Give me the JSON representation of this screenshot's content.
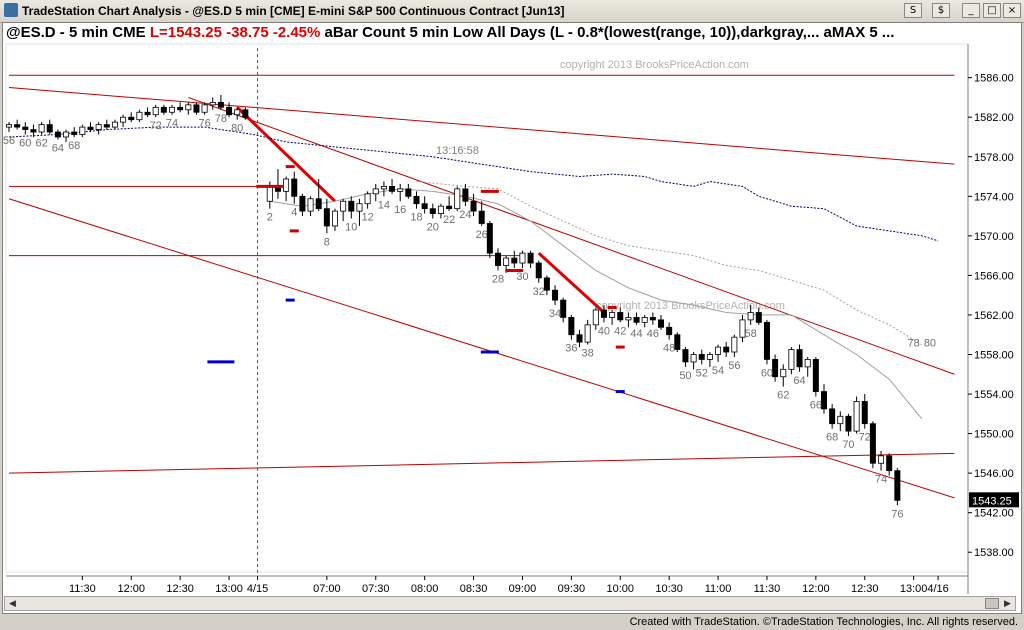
{
  "window": {
    "title": "TradeStation Chart Analysis - @ES.D 5 min [CME] E-mini S&P 500 Continuous Contract [Jun13]",
    "buttons": [
      "S",
      "$",
      "_",
      "□",
      "×"
    ]
  },
  "header": {
    "symbol": "@ES.D - 5 min  CME",
    "last": "L=1543.25  -38.75  -2.45%",
    "indicator": "aBar Count 5 min Low All Days (L - 0.8*(lowest(range, 10)),darkgray,...  aMAX 5 ..."
  },
  "footer": "Created with TradeStation. ©TradeStation Technologies, Inc. All rights reserved.",
  "colors": {
    "bg": "#ffffff",
    "trendline": "#c00000",
    "thick_trendline": "#e00000",
    "blue_ma": "#00007a",
    "gray_ma": "#a0a0a0",
    "marker_blue": "#0000cc",
    "marker_red": "#d00000",
    "text_label": "#707070",
    "last_price_bg": "#000000"
  },
  "chart_data": {
    "type": "candlestick",
    "symbol": "@ES.D",
    "interval": "5 min",
    "watermark": "copyright 2013 BrooksPriceAction.com",
    "annotation": "13:16:58",
    "last_price": "1543.25",
    "y_ticks": [
      "1586.00",
      "1582.00",
      "1578.00",
      "1574.00",
      "1570.00",
      "1566.00",
      "1562.00",
      "1558.00",
      "1554.00",
      "1550.00",
      "1546.00",
      "1542.00",
      "1538.00"
    ],
    "y_tick_values": [
      1586,
      1582,
      1578,
      1574,
      1570,
      1566,
      1562,
      1558,
      1554,
      1550,
      1546,
      1542,
      1538
    ],
    "ylim": [
      1536,
      1589
    ],
    "x_ticks": [
      {
        "bar": 9,
        "label": "11:30"
      },
      {
        "bar": 15,
        "label": "12:00"
      },
      {
        "bar": 21,
        "label": "12:30"
      },
      {
        "bar": 27,
        "label": "13:00"
      },
      {
        "bar": 30.5,
        "label": "4/15"
      },
      {
        "bar": 38,
        "label": "07:00"
      },
      {
        "bar": 44,
        "label": "07:30"
      },
      {
        "bar": 50,
        "label": "08:00"
      },
      {
        "bar": 56,
        "label": "08:30"
      },
      {
        "bar": 62,
        "label": "09:00"
      },
      {
        "bar": 68,
        "label": "09:30"
      },
      {
        "bar": 74,
        "label": "10:00"
      },
      {
        "bar": 80,
        "label": "10:30"
      },
      {
        "bar": 86,
        "label": "11:00"
      },
      {
        "bar": 92,
        "label": "11:30"
      },
      {
        "bar": 98,
        "label": "12:00"
      },
      {
        "bar": 104,
        "label": "12:30"
      },
      {
        "bar": 110,
        "label": "13:00"
      },
      {
        "bar": 113,
        "label": "4/16"
      }
    ],
    "session_break_bar": 30.5,
    "bars_prev": [
      [
        1581.0,
        1581.5,
        1580.5,
        1581.25
      ],
      [
        1581.25,
        1581.75,
        1580.75,
        1581.0
      ],
      [
        1581.0,
        1581.5,
        1580.25,
        1580.75
      ],
      [
        1580.75,
        1581.25,
        1580.0,
        1580.5
      ],
      [
        1580.5,
        1581.5,
        1580.25,
        1581.25
      ],
      [
        1581.25,
        1581.75,
        1580.25,
        1580.5
      ],
      [
        1580.5,
        1580.75,
        1579.75,
        1580.0
      ],
      [
        1580.0,
        1580.75,
        1579.5,
        1580.5
      ],
      [
        1580.5,
        1581.0,
        1580.0,
        1580.25
      ],
      [
        1580.25,
        1581.25,
        1580.0,
        1581.0
      ],
      [
        1581.0,
        1581.5,
        1580.5,
        1580.75
      ],
      [
        1580.75,
        1581.5,
        1580.25,
        1581.25
      ],
      [
        1581.25,
        1581.75,
        1580.75,
        1581.0
      ],
      [
        1581.0,
        1581.75,
        1580.75,
        1581.5
      ],
      [
        1581.5,
        1582.25,
        1581.0,
        1582.0
      ],
      [
        1582.0,
        1582.5,
        1581.5,
        1581.75
      ],
      [
        1581.75,
        1582.75,
        1581.5,
        1582.5
      ],
      [
        1582.5,
        1583.0,
        1582.0,
        1582.25
      ],
      [
        1582.25,
        1583.25,
        1582.0,
        1583.0
      ],
      [
        1583.0,
        1583.25,
        1582.25,
        1582.5
      ],
      [
        1582.5,
        1583.25,
        1582.25,
        1583.0
      ],
      [
        1583.0,
        1583.5,
        1582.5,
        1582.75
      ],
      [
        1582.75,
        1583.5,
        1582.25,
        1583.25
      ],
      [
        1583.25,
        1583.5,
        1582.25,
        1582.5
      ],
      [
        1582.5,
        1583.5,
        1582.25,
        1583.25
      ],
      [
        1583.25,
        1584.0,
        1582.75,
        1583.5
      ],
      [
        1583.5,
        1584.25,
        1582.75,
        1583.0
      ],
      [
        1583.0,
        1583.5,
        1582.0,
        1582.25
      ],
      [
        1582.25,
        1583.0,
        1581.75,
        1582.75
      ],
      [
        1582.75,
        1583.0,
        1581.75,
        1582.0
      ]
    ],
    "bars_today": [
      [
        1573.5,
        1575.5,
        1572.75,
        1575.0
      ],
      [
        1575.0,
        1576.75,
        1573.75,
        1574.5
      ],
      [
        1574.5,
        1576.0,
        1573.5,
        1575.75
      ],
      [
        1575.75,
        1576.5,
        1573.25,
        1574.0
      ],
      [
        1574.0,
        1574.25,
        1572.0,
        1572.5
      ],
      [
        1572.5,
        1574.0,
        1572.0,
        1573.75
      ],
      [
        1573.75,
        1575.75,
        1572.5,
        1572.75
      ],
      [
        1572.75,
        1573.75,
        1570.25,
        1571.0
      ],
      [
        1571.0,
        1572.75,
        1570.5,
        1572.5
      ],
      [
        1572.5,
        1573.75,
        1571.5,
        1573.5
      ],
      [
        1573.5,
        1574.0,
        1571.75,
        1572.5
      ],
      [
        1572.5,
        1573.75,
        1571.0,
        1573.25
      ],
      [
        1573.25,
        1574.5,
        1572.75,
        1574.25
      ],
      [
        1574.25,
        1575.25,
        1573.5,
        1574.75
      ],
      [
        1574.75,
        1575.5,
        1574.0,
        1575.0
      ],
      [
        1575.0,
        1575.75,
        1574.25,
        1574.5
      ],
      [
        1574.5,
        1575.25,
        1573.5,
        1574.75
      ],
      [
        1574.75,
        1575.25,
        1573.75,
        1574.0
      ],
      [
        1574.0,
        1574.5,
        1572.75,
        1573.25
      ],
      [
        1573.25,
        1574.0,
        1572.25,
        1572.75
      ],
      [
        1572.75,
        1573.25,
        1571.75,
        1572.25
      ],
      [
        1572.25,
        1573.25,
        1571.75,
        1573.0
      ],
      [
        1573.0,
        1574.0,
        1572.5,
        1572.75
      ],
      [
        1572.75,
        1575.0,
        1572.5,
        1574.75
      ],
      [
        1574.75,
        1575.25,
        1573.0,
        1573.5
      ],
      [
        1573.5,
        1574.25,
        1572.0,
        1572.5
      ],
      [
        1572.5,
        1573.5,
        1571.0,
        1571.25
      ],
      [
        1571.25,
        1571.5,
        1567.75,
        1568.25
      ],
      [
        1568.25,
        1568.75,
        1566.5,
        1567.0
      ],
      [
        1567.0,
        1568.0,
        1566.25,
        1567.75
      ],
      [
        1567.75,
        1568.5,
        1566.75,
        1567.25
      ],
      [
        1567.25,
        1568.5,
        1566.75,
        1568.25
      ],
      [
        1568.25,
        1568.5,
        1566.75,
        1567.25
      ],
      [
        1567.25,
        1567.5,
        1565.25,
        1565.75
      ],
      [
        1565.75,
        1566.0,
        1564.0,
        1564.5
      ],
      [
        1564.5,
        1565.0,
        1563.0,
        1563.5
      ],
      [
        1563.5,
        1563.75,
        1561.25,
        1561.75
      ],
      [
        1561.75,
        1562.0,
        1559.5,
        1560.0
      ],
      [
        1560.0,
        1560.5,
        1558.75,
        1559.25
      ],
      [
        1559.25,
        1561.5,
        1559.0,
        1561.0
      ],
      [
        1561.0,
        1562.75,
        1560.5,
        1562.5
      ],
      [
        1562.5,
        1563.0,
        1561.25,
        1561.75
      ],
      [
        1561.75,
        1562.5,
        1561.0,
        1562.25
      ],
      [
        1562.25,
        1562.75,
        1561.25,
        1561.5
      ],
      [
        1561.5,
        1562.25,
        1560.75,
        1561.75
      ],
      [
        1561.75,
        1562.25,
        1561.0,
        1561.25
      ],
      [
        1561.25,
        1562.0,
        1560.75,
        1561.75
      ],
      [
        1561.75,
        1562.25,
        1561.0,
        1561.5
      ],
      [
        1561.5,
        1562.0,
        1560.5,
        1560.75
      ],
      [
        1560.75,
        1561.25,
        1559.5,
        1560.0
      ],
      [
        1560.0,
        1560.25,
        1558.25,
        1558.5
      ],
      [
        1558.5,
        1558.75,
        1556.75,
        1557.25
      ],
      [
        1557.25,
        1558.25,
        1556.5,
        1558.0
      ],
      [
        1558.0,
        1558.5,
        1557.0,
        1557.5
      ],
      [
        1557.5,
        1558.25,
        1556.75,
        1558.0
      ],
      [
        1558.0,
        1559.0,
        1557.25,
        1558.75
      ],
      [
        1558.75,
        1559.25,
        1557.75,
        1558.25
      ],
      [
        1558.25,
        1560.0,
        1557.75,
        1559.75
      ],
      [
        1559.75,
        1562.0,
        1559.25,
        1561.5
      ],
      [
        1561.5,
        1563.0,
        1561.0,
        1562.25
      ],
      [
        1562.25,
        1562.75,
        1561.0,
        1561.25
      ],
      [
        1561.25,
        1561.5,
        1557.0,
        1557.5
      ],
      [
        1557.5,
        1558.0,
        1555.25,
        1555.75
      ],
      [
        1555.75,
        1557.0,
        1554.75,
        1556.5
      ],
      [
        1556.5,
        1558.75,
        1556.0,
        1558.5
      ],
      [
        1558.5,
        1559.0,
        1556.25,
        1556.75
      ],
      [
        1556.75,
        1557.75,
        1555.75,
        1557.5
      ],
      [
        1557.5,
        1557.75,
        1553.75,
        1554.25
      ],
      [
        1554.25,
        1555.0,
        1552.0,
        1552.5
      ],
      [
        1552.5,
        1553.0,
        1550.5,
        1551.0
      ],
      [
        1551.0,
        1552.25,
        1550.25,
        1551.75
      ],
      [
        1551.75,
        1552.0,
        1549.75,
        1550.25
      ],
      [
        1550.25,
        1553.75,
        1550.0,
        1553.25
      ],
      [
        1553.25,
        1554.0,
        1550.5,
        1551.0
      ],
      [
        1551.0,
        1551.25,
        1546.5,
        1547.0
      ],
      [
        1547.0,
        1548.25,
        1546.25,
        1547.75
      ],
      [
        1547.75,
        1548.0,
        1545.75,
        1546.25
      ],
      [
        1546.25,
        1546.5,
        1542.75,
        1543.25
      ]
    ],
    "bar_labels": [
      {
        "bar": 0,
        "text": "56"
      },
      {
        "bar": 2,
        "text": "60"
      },
      {
        "bar": 4,
        "text": "62"
      },
      {
        "bar": 6,
        "text": "64"
      },
      {
        "bar": 8,
        "text": "68"
      },
      {
        "bar": 18,
        "text": "72"
      },
      {
        "bar": 20,
        "text": "74"
      },
      {
        "bar": 24,
        "text": "76"
      },
      {
        "bar": 26,
        "text": "78"
      },
      {
        "bar": 28,
        "text": "80"
      },
      {
        "bar": 31,
        "text": "2"
      },
      {
        "bar": 34,
        "text": "4"
      },
      {
        "bar": 38,
        "text": "8"
      },
      {
        "bar": 41,
        "text": "10"
      },
      {
        "bar": 43,
        "text": "12"
      },
      {
        "bar": 45,
        "text": "14"
      },
      {
        "bar": 47,
        "text": "16"
      },
      {
        "bar": 49,
        "text": "18"
      },
      {
        "bar": 51,
        "text": "20"
      },
      {
        "bar": 53,
        "text": "22"
      },
      {
        "bar": 55,
        "text": "24"
      },
      {
        "bar": 57,
        "text": "26"
      },
      {
        "bar": 59,
        "text": "28"
      },
      {
        "bar": 62,
        "text": "30"
      },
      {
        "bar": 64,
        "text": "32"
      },
      {
        "bar": 66,
        "text": "34"
      },
      {
        "bar": 68,
        "text": "36"
      },
      {
        "bar": 70,
        "text": "38"
      },
      {
        "bar": 72,
        "text": "40"
      },
      {
        "bar": 74,
        "text": "42"
      },
      {
        "bar": 76,
        "text": "44"
      },
      {
        "bar": 78,
        "text": "46"
      },
      {
        "bar": 80,
        "text": "48"
      },
      {
        "bar": 82,
        "text": "50"
      },
      {
        "bar": 84,
        "text": "52"
      },
      {
        "bar": 86,
        "text": "54"
      },
      {
        "bar": 88,
        "text": "56"
      },
      {
        "bar": 90,
        "text": "58"
      },
      {
        "bar": 92,
        "text": "60"
      },
      {
        "bar": 94,
        "text": "62"
      },
      {
        "bar": 96,
        "text": "64"
      },
      {
        "bar": 98,
        "text": "66"
      },
      {
        "bar": 100,
        "text": "68"
      },
      {
        "bar": 102,
        "text": "70"
      },
      {
        "bar": 104,
        "text": "72"
      },
      {
        "bar": 106,
        "text": "74"
      },
      {
        "bar": 108,
        "text": "76"
      },
      {
        "bar": 110,
        "text": "78"
      },
      {
        "bar": 112,
        "text": "80"
      }
    ],
    "horizontal_lines": [
      {
        "price": 1586.25,
        "from_bar": 0,
        "to_bar": 116
      },
      {
        "price": 1575.0,
        "from_bar": 0,
        "to_bar": 32
      },
      {
        "price": 1568.0,
        "from_bar": 0,
        "to_bar": 63
      }
    ],
    "trendlines": [
      {
        "from": [
          0,
          1585.0
        ],
        "to": [
          116,
          1577.25
        ],
        "weight": "thin"
      },
      {
        "from": [
          22,
          1584.0
        ],
        "to": [
          116,
          1556.0
        ],
        "weight": "thin"
      },
      {
        "from": [
          0,
          1573.75
        ],
        "to": [
          116,
          1543.5
        ],
        "weight": "thin"
      },
      {
        "from": [
          0,
          1546.0
        ],
        "to": [
          116,
          1548.0
        ],
        "weight": "thin"
      },
      {
        "from": [
          28,
          1583.0
        ],
        "to": [
          40,
          1573.5
        ],
        "weight": "thick"
      },
      {
        "from": [
          65,
          1568.25
        ],
        "to": [
          73,
          1562.25
        ],
        "weight": "thick"
      }
    ],
    "markers": [
      {
        "bar": 26,
        "price": 1557.25,
        "color": "blue",
        "width": 3
      },
      {
        "bar": 32,
        "price": 1575.0,
        "color": "red",
        "width": 3
      },
      {
        "bar": 34.5,
        "price": 1577.0,
        "color": "red",
        "width": 1
      },
      {
        "bar": 34.5,
        "price": 1563.5,
        "color": "blue",
        "width": 1
      },
      {
        "bar": 35,
        "price": 1570.5,
        "color": "red",
        "width": 1
      },
      {
        "bar": 59,
        "price": 1574.5,
        "color": "red",
        "width": 2
      },
      {
        "bar": 59,
        "price": 1558.25,
        "color": "blue",
        "width": 2
      },
      {
        "bar": 62,
        "price": 1566.5,
        "color": "red",
        "width": 2
      },
      {
        "bar": 74,
        "price": 1562.75,
        "color": "red",
        "width": 1
      },
      {
        "bar": 75,
        "price": 1558.75,
        "color": "red",
        "width": 1
      },
      {
        "bar": 75,
        "price": 1554.25,
        "color": "blue",
        "width": 1
      }
    ],
    "blue_ma": [
      [
        0,
        1580.0
      ],
      [
        6,
        1580.25
      ],
      [
        12,
        1580.75
      ],
      [
        18,
        1581.0
      ],
      [
        24,
        1581.0
      ],
      [
        28,
        1580.5
      ],
      [
        30,
        1580.25
      ],
      [
        34,
        1579.5
      ],
      [
        40,
        1579.0
      ],
      [
        46,
        1578.5
      ],
      [
        52,
        1578.0
      ],
      [
        58,
        1577.25
      ],
      [
        64,
        1576.5
      ],
      [
        70,
        1576.0
      ],
      [
        74,
        1576.25
      ],
      [
        78,
        1576.0
      ],
      [
        80,
        1575.5
      ],
      [
        84,
        1575.0
      ],
      [
        86,
        1575.5
      ],
      [
        90,
        1575.0
      ],
      [
        92,
        1574.0
      ],
      [
        94,
        1573.5
      ],
      [
        96,
        1573.0
      ],
      [
        100,
        1572.75
      ],
      [
        104,
        1571.0
      ],
      [
        108,
        1570.5
      ],
      [
        112,
        1570.0
      ],
      [
        114,
        1569.5
      ]
    ],
    "gray_ma": [
      [
        32,
        1573.5
      ],
      [
        36,
        1573.0
      ],
      [
        40,
        1573.5
      ],
      [
        44,
        1574.25
      ],
      [
        48,
        1574.75
      ],
      [
        52,
        1574.5
      ],
      [
        56,
        1574.0
      ],
      [
        60,
        1573.25
      ],
      [
        64,
        1571.5
      ],
      [
        68,
        1569.0
      ],
      [
        72,
        1566.5
      ],
      [
        76,
        1564.75
      ],
      [
        80,
        1563.5
      ],
      [
        84,
        1563.0
      ],
      [
        88,
        1562.25
      ],
      [
        92,
        1562.0
      ],
      [
        96,
        1562.0
      ],
      [
        100,
        1560.0
      ],
      [
        104,
        1558.0
      ],
      [
        108,
        1555.5
      ],
      [
        112,
        1551.5
      ]
    ],
    "gray_dash": [
      [
        50,
        1575.5
      ],
      [
        56,
        1575.0
      ],
      [
        60,
        1574.75
      ],
      [
        64,
        1573.0
      ],
      [
        68,
        1571.5
      ],
      [
        72,
        1570.0
      ],
      [
        76,
        1569.0
      ],
      [
        80,
        1568.5
      ],
      [
        84,
        1568.0
      ],
      [
        88,
        1567.0
      ],
      [
        92,
        1566.5
      ],
      [
        96,
        1565.5
      ],
      [
        100,
        1564.5
      ],
      [
        104,
        1562.5
      ],
      [
        108,
        1561.0
      ],
      [
        112,
        1559.0
      ]
    ]
  }
}
